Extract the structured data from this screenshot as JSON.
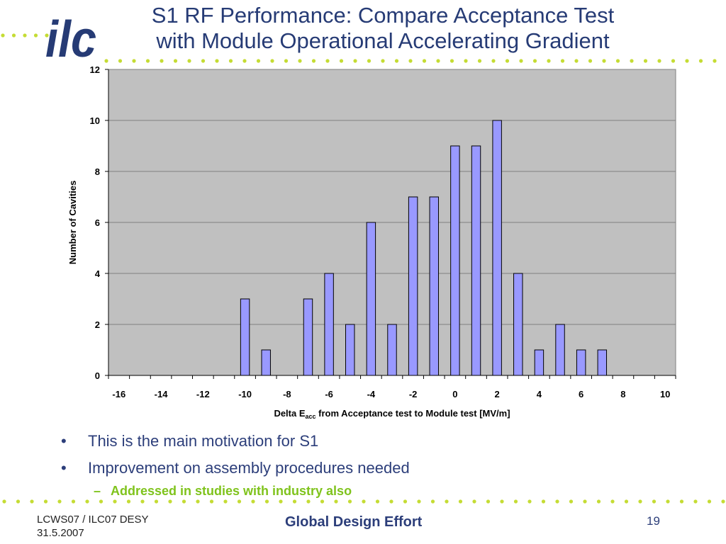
{
  "slide": {
    "title_line1": "S1 RF Performance: Compare Acceptance Test",
    "title_line2": "with Module Operational Accelerating Gradient",
    "logo_text": "ilc",
    "bullets": [
      "This is the main motivation for S1",
      "Improvement on assembly procedures needed"
    ],
    "sub_bullet": "Addressed in studies with industry also",
    "bullet_mark": "•",
    "sub_mark": "–",
    "footer_left_line1": "LCWS07 / ILC07 DESY",
    "footer_left_line2": "31.5.2007",
    "footer_center": "Global Design Effort",
    "page_number": "19"
  },
  "colors": {
    "title": "#263b75",
    "logo": "#263b75",
    "dots": "#c5dc34",
    "plot_bg": "#c0c0c0",
    "bar_fill": "#9999ff",
    "sub_bullet": "#7fc31c"
  },
  "chart_data": {
    "type": "bar",
    "categories": [
      "-16",
      "-15",
      "-14",
      "-13",
      "-12",
      "-11",
      "-10",
      "-9",
      "-8",
      "-7",
      "-6",
      "-5",
      "-4",
      "-3",
      "-2",
      "-1",
      "0",
      "1",
      "2",
      "3",
      "4",
      "5",
      "6",
      "7",
      "8",
      "9",
      "10"
    ],
    "values": [
      0,
      0,
      0,
      0,
      0,
      0,
      3,
      1,
      0,
      3,
      4,
      2,
      6,
      2,
      7,
      7,
      9,
      9,
      10,
      4,
      1,
      2,
      1,
      1,
      0,
      0,
      0
    ],
    "x_tick_labels": [
      "-16",
      "-14",
      "-12",
      "-10",
      "-8",
      "-6",
      "-4",
      "-2",
      "0",
      "2",
      "4",
      "6",
      "8",
      "10"
    ],
    "y_tick_labels": [
      "0",
      "2",
      "4",
      "6",
      "8",
      "10",
      "12"
    ],
    "ylim": [
      0,
      12
    ],
    "ylabel": "Number of Cavities",
    "xlabel_prefix": "Delta E",
    "xlabel_sub": "acc",
    "xlabel_suffix": " from Acceptance test to Module test [MV/m]",
    "grid": true,
    "legend": "none"
  }
}
